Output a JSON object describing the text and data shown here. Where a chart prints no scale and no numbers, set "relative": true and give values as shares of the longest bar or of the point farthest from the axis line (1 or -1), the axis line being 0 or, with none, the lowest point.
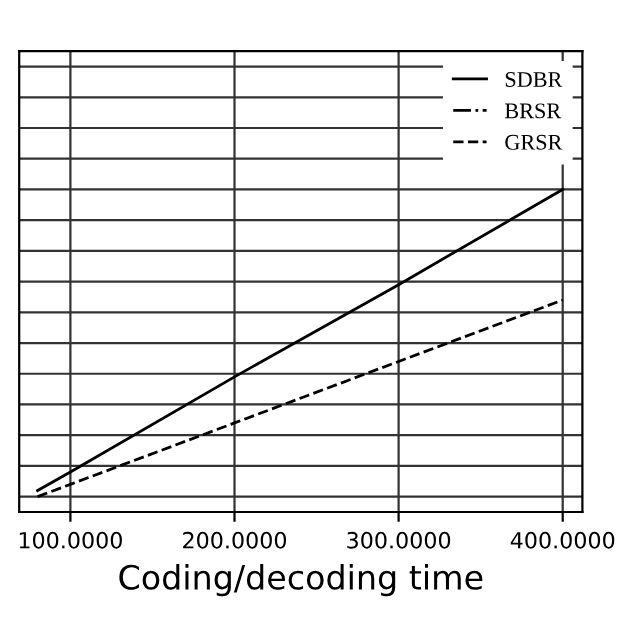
{
  "chart_data": {
    "type": "line",
    "xlabel": "Coding/decoding time",
    "relative": true,
    "xlim": [
      68.8,
      412
    ],
    "xticks": [
      {
        "value": 100,
        "label": "100.0000"
      },
      {
        "value": 200,
        "label": "200.0000"
      },
      {
        "value": 300,
        "label": "300.0000"
      },
      {
        "value": 400,
        "label": "400.0000"
      }
    ],
    "series": [
      {
        "name": "SDBR",
        "color": "#000000",
        "line_style": "solid",
        "x": [
          80,
          100,
          200,
          300,
          400
        ],
        "values": [
          0.02,
          0.08,
          0.39,
          0.69,
          1
        ]
      },
      {
        "name": "BRSR",
        "color": "#000000",
        "line_style": "dashdot",
        "values": [
          null,
          null
        ]
      },
      {
        "name": "GRSR",
        "color": "#000000",
        "line_style": "dashed",
        "x": [
          80,
          100,
          200,
          300,
          400
        ],
        "values": [
          0,
          0.04,
          0.24,
          0.44,
          0.64
        ]
      }
    ],
    "grid": true,
    "legend": "top right",
    "tick_labels": "x",
    "marker": "none"
  }
}
